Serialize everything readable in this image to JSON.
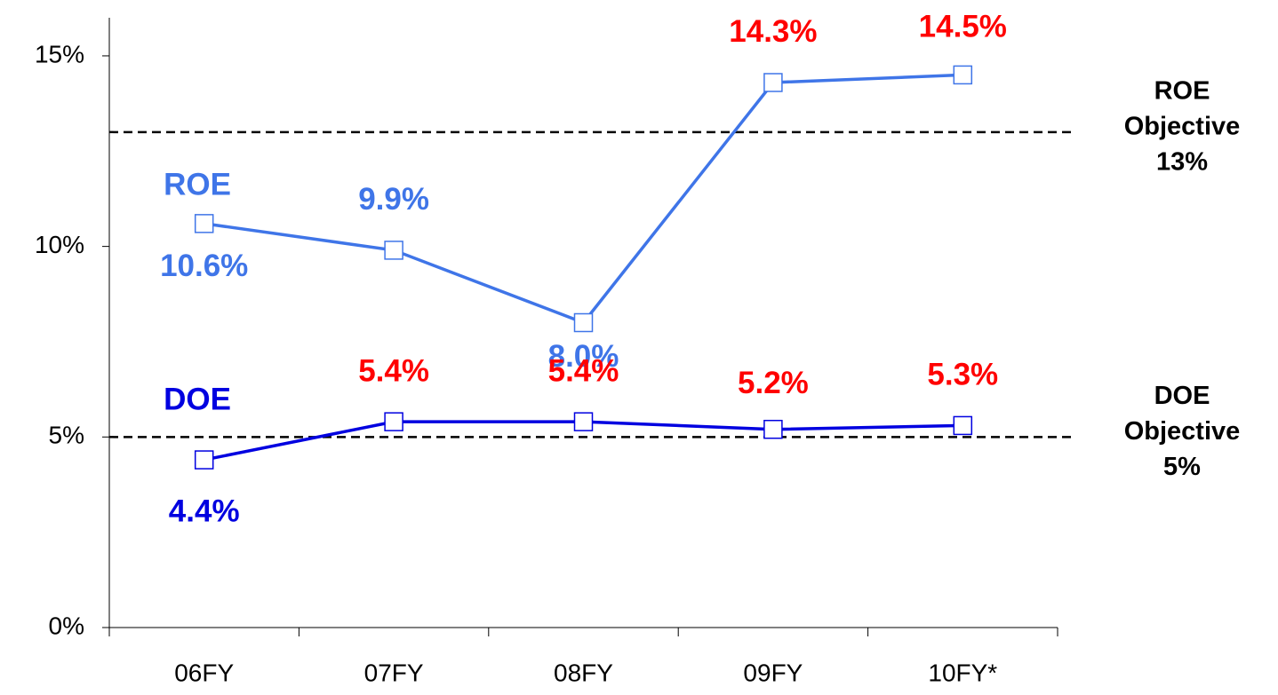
{
  "chart_data": {
    "type": "line",
    "categories": [
      "06FY",
      "07FY",
      "08FY",
      "09FY",
      "10FY*"
    ],
    "ylim": [
      0,
      16
    ],
    "yticks": [
      {
        "value": 0,
        "label": "0%"
      },
      {
        "value": 5,
        "label": "5%"
      },
      {
        "value": 10,
        "label": "10%"
      },
      {
        "value": 15,
        "label": "15%"
      }
    ],
    "series": [
      {
        "name": "ROE",
        "color": "#3f75e8",
        "values": [
          10.6,
          9.9,
          8.0,
          14.3,
          14.5
        ],
        "value_labels": [
          "10.6%",
          "9.9%",
          "8.0%",
          "14.3%",
          "14.5%"
        ],
        "label_colors": [
          "#3f75e8",
          "#3f75e8",
          "#3f75e8",
          "#ff0000",
          "#ff0000"
        ]
      },
      {
        "name": "DOE",
        "color": "#0000e0",
        "values": [
          4.4,
          5.4,
          5.4,
          5.2,
          5.3
        ],
        "value_labels": [
          "4.4%",
          "5.4%",
          "5.4%",
          "5.2%",
          "5.3%"
        ],
        "label_colors": [
          "#0000e0",
          "#ff0000",
          "#ff0000",
          "#ff0000",
          "#ff0000"
        ]
      }
    ],
    "reference_lines": [
      {
        "value": 13,
        "label": [
          "ROE",
          "Objective",
          "13%"
        ]
      },
      {
        "value": 5,
        "label": [
          "DOE",
          "Objective",
          "5%"
        ]
      }
    ]
  }
}
